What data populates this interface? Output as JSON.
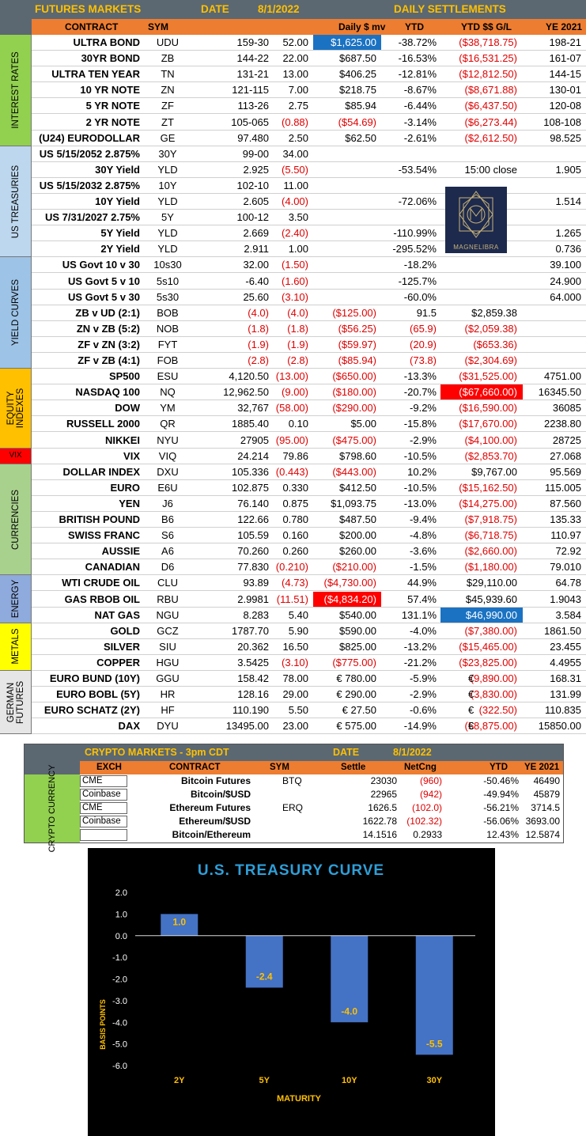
{
  "futures": {
    "title": "FUTURES MARKETS",
    "date_label": "DATE",
    "date": "8/1/2022",
    "settlements_title": "DAILY SETTLEMENTS",
    "headers": {
      "contract": "CONTRACT",
      "sym": "SYM",
      "daily_mv": "Daily $ mv",
      "ytd": "YTD",
      "ytd_gl": "YTD $$ G/L",
      "ye": "YE 2021"
    },
    "sections": [
      {
        "label": "INTEREST RATES",
        "color": "#92d050"
      },
      {
        "label": "US TREASURIES",
        "color": "#bdd7ee"
      },
      {
        "label": "YIELD CURVES",
        "color": "#9dc3e6"
      },
      {
        "label": "EQUITY INDEXES",
        "color": "#ffc000"
      },
      {
        "label": "VIX",
        "color": "#ff0000"
      },
      {
        "label": "CURRENCIES",
        "color": "#a9d18e"
      },
      {
        "label": "ENERGY",
        "color": "#8faadc"
      },
      {
        "label": "METALS",
        "color": "#ffff00"
      },
      {
        "label": "GERMAN FUTURES",
        "color": "#e7e6e6"
      }
    ],
    "rows": [
      {
        "name": "ULTRA BOND",
        "sym": "UDU",
        "last": "159-30",
        "chg": "52.00",
        "mv": "$1,625.00",
        "ytd": "-38.72%",
        "gl": "($38,718.75)",
        "ye": "198-21"
      },
      {
        "name": "30YR BOND",
        "sym": "ZB",
        "last": "144-22",
        "chg": "22.00",
        "mv": "$687.50",
        "ytd": "-16.53%",
        "gl": "($16,531.25)",
        "ye": "161-07"
      },
      {
        "name": "ULTRA TEN YEAR",
        "sym": "TN",
        "last": "131-21",
        "chg": "13.00",
        "mv": "$406.25",
        "ytd": "-12.81%",
        "gl": "($12,812.50)",
        "ye": "144-15"
      },
      {
        "name": "10 YR NOTE",
        "sym": "ZN",
        "last": "121-115",
        "chg": "7.00",
        "mv": "$218.75",
        "ytd": "-8.67%",
        "gl": "($8,671.88)",
        "ye": "130-01"
      },
      {
        "name": "5 YR NOTE",
        "sym": "ZF",
        "last": "113-26",
        "chg": "2.75",
        "mv": "$85.94",
        "ytd": "-6.44%",
        "gl": "($6,437.50)",
        "ye": "120-08"
      },
      {
        "name": "2 YR NOTE",
        "sym": "ZT",
        "last": "105-065",
        "chg": "(0.88)",
        "mv": "($54.69)",
        "ytd": "-3.14%",
        "gl": "($6,273.44)",
        "ye": "108-108"
      },
      {
        "name": "(U24) EURODOLLAR",
        "sym": "GE",
        "last": "97.480",
        "chg": "2.50",
        "mv": "$62.50",
        "ytd": "-2.61%",
        "gl": "($2,612.50)",
        "ye": "98.525"
      },
      {
        "name": "US 5/15/2052 2.875%",
        "sym": "30Y",
        "last": "99-00",
        "chg": "34.00",
        "mv": "",
        "ytd": "",
        "gl": "",
        "ye": ""
      },
      {
        "name": "30Y Yield",
        "sym": "YLD",
        "last": "2.925",
        "chg": "(5.50)",
        "mv": "",
        "ytd": "-53.54%",
        "gl": "15:00 close",
        "ye": "1.905"
      },
      {
        "name": "US 5/15/2032 2.875%",
        "sym": "10Y",
        "last": "102-10",
        "chg": "11.00",
        "mv": "",
        "ytd": "",
        "gl": "",
        "ye": ""
      },
      {
        "name": "10Y Yield",
        "sym": "YLD",
        "last": "2.605",
        "chg": "(4.00)",
        "mv": "",
        "ytd": "-72.06%",
        "gl": "",
        "ye": "1.514"
      },
      {
        "name": "US 7/31/2027 2.75%",
        "sym": "5Y",
        "last": "100-12",
        "chg": "3.50",
        "mv": "",
        "ytd": "",
        "gl": "",
        "ye": ""
      },
      {
        "name": "5Y Yield",
        "sym": "YLD",
        "last": "2.669",
        "chg": "(2.40)",
        "mv": "",
        "ytd": "-110.99%",
        "gl": "",
        "ye": "1.265"
      },
      {
        "name": "2Y Yield",
        "sym": "YLD",
        "last": "2.911",
        "chg": "1.00",
        "mv": "",
        "ytd": "-295.52%",
        "gl": "",
        "ye": "0.736"
      },
      {
        "name": "US Govt 10 v 30",
        "sym": "10s30",
        "last": "32.00",
        "chg": "(1.50)",
        "mv": "",
        "ytd": "-18.2%",
        "gl": "",
        "ye": "39.100"
      },
      {
        "name": "US Govt 5 v 10",
        "sym": "5s10",
        "last": "-6.40",
        "chg": "(1.60)",
        "mv": "",
        "ytd": "-125.7%",
        "gl": "",
        "ye": "24.900"
      },
      {
        "name": "US Govt 5 v 30",
        "sym": "5s30",
        "last": "25.60",
        "chg": "(3.10)",
        "mv": "",
        "ytd": "-60.0%",
        "gl": "",
        "ye": "64.000"
      },
      {
        "name": "ZB v UD (2:1)",
        "sym": "BOB",
        "last": "(4.0)",
        "chg": "(4.0)",
        "mv": "($125.00)",
        "ytd": "91.5",
        "gl": "$2,859.38",
        "ye": ""
      },
      {
        "name": "ZN v ZB (5:2)",
        "sym": "NOB",
        "last": "(1.8)",
        "chg": "(1.8)",
        "mv": "($56.25)",
        "ytd": "(65.9)",
        "gl": "($2,059.38)",
        "ye": ""
      },
      {
        "name": "ZF v ZN (3:2)",
        "sym": "FYT",
        "last": "(1.9)",
        "chg": "(1.9)",
        "mv": "($59.97)",
        "ytd": "(20.9)",
        "gl": "($653.36)",
        "ye": ""
      },
      {
        "name": "ZF v ZB (4:1)",
        "sym": "FOB",
        "last": "(2.8)",
        "chg": "(2.8)",
        "mv": "($85.94)",
        "ytd": "(73.8)",
        "gl": "($2,304.69)",
        "ye": ""
      },
      {
        "name": "SP500",
        "sym": "ESU",
        "last": "4,120.50",
        "chg": "(13.00)",
        "mv": "($650.00)",
        "ytd": "-13.3%",
        "gl": "($31,525.00)",
        "ye": "4751.00"
      },
      {
        "name": "NASDAQ 100",
        "sym": "NQ",
        "last": "12,962.50",
        "chg": "(9.00)",
        "mv": "($180.00)",
        "ytd": "-20.7%",
        "gl": "($67,660.00)",
        "ye": "16345.50"
      },
      {
        "name": "DOW",
        "sym": "YM",
        "last": "32,767",
        "chg": "(58.00)",
        "mv": "($290.00)",
        "ytd": "-9.2%",
        "gl": "($16,590.00)",
        "ye": "36085"
      },
      {
        "name": "RUSSELL 2000",
        "sym": "QR",
        "last": "1885.40",
        "chg": "0.10",
        "mv": "$5.00",
        "ytd": "-15.8%",
        "gl": "($17,670.00)",
        "ye": "2238.80"
      },
      {
        "name": "NIKKEI",
        "sym": "NYU",
        "last": "27905",
        "chg": "(95.00)",
        "mv": "($475.00)",
        "ytd": "-2.9%",
        "gl": "($4,100.00)",
        "ye": "28725"
      },
      {
        "name": "VIX",
        "sym": "VIQ",
        "last": "24.214",
        "chg": "79.86",
        "mv": "$798.60",
        "ytd": "-10.5%",
        "gl": "($2,853.70)",
        "ye": "27.068"
      },
      {
        "name": "DOLLAR INDEX",
        "sym": "DXU",
        "last": "105.336",
        "chg": "(0.443)",
        "mv": "($443.00)",
        "ytd": "10.2%",
        "gl": "$9,767.00",
        "ye": "95.569"
      },
      {
        "name": "EURO",
        "sym": "E6U",
        "last": "102.875",
        "chg": "0.330",
        "mv": "$412.50",
        "ytd": "-10.5%",
        "gl": "($15,162.50)",
        "ye": "115.005"
      },
      {
        "name": "YEN",
        "sym": "J6",
        "last": "76.140",
        "chg": "0.875",
        "mv": "$1,093.75",
        "ytd": "-13.0%",
        "gl": "($14,275.00)",
        "ye": "87.560"
      },
      {
        "name": "BRITISH POUND",
        "sym": "B6",
        "last": "122.66",
        "chg": "0.780",
        "mv": "$487.50",
        "ytd": "-9.4%",
        "gl": "($7,918.75)",
        "ye": "135.33"
      },
      {
        "name": "SWISS FRANC",
        "sym": "S6",
        "last": "105.59",
        "chg": "0.160",
        "mv": "$200.00",
        "ytd": "-4.8%",
        "gl": "($6,718.75)",
        "ye": "110.97"
      },
      {
        "name": "AUSSIE",
        "sym": "A6",
        "last": "70.260",
        "chg": "0.260",
        "mv": "$260.00",
        "ytd": "-3.6%",
        "gl": "($2,660.00)",
        "ye": "72.92"
      },
      {
        "name": "CANADIAN",
        "sym": "D6",
        "last": "77.830",
        "chg": "(0.210)",
        "mv": "($210.00)",
        "ytd": "-1.5%",
        "gl": "($1,180.00)",
        "ye": "79.010"
      },
      {
        "name": "WTI CRUDE OIL",
        "sym": "CLU",
        "last": "93.89",
        "chg": "(4.73)",
        "mv": "($4,730.00)",
        "ytd": "44.9%",
        "gl": "$29,110.00",
        "ye": "64.78"
      },
      {
        "name": "GAS RBOB OIL",
        "sym": "RBU",
        "last": "2.9981",
        "chg": "(11.51)",
        "mv": "($4,834.20)",
        "ytd": "57.4%",
        "gl": "$45,939.60",
        "ye": "1.9043"
      },
      {
        "name": "NAT GAS",
        "sym": "NGU",
        "last": "8.283",
        "chg": "5.40",
        "mv": "$540.00",
        "ytd": "131.1%",
        "gl": "$46,990.00",
        "ye": "3.584"
      },
      {
        "name": "GOLD",
        "sym": "GCZ",
        "last": "1787.70",
        "chg": "5.90",
        "mv": "$590.00",
        "ytd": "-4.0%",
        "gl": "($7,380.00)",
        "ye": "1861.50"
      },
      {
        "name": "SILVER",
        "sym": "SIU",
        "last": "20.362",
        "chg": "16.50",
        "mv": "$825.00",
        "ytd": "-13.2%",
        "gl": "($15,465.00)",
        "ye": "23.455"
      },
      {
        "name": "COPPER",
        "sym": "HGU",
        "last": "3.5425",
        "chg": "(3.10)",
        "mv": "($775.00)",
        "ytd": "-21.2%",
        "gl": "($23,825.00)",
        "ye": "4.4955"
      },
      {
        "name": "EURO BUND (10Y)",
        "sym": "GGU",
        "last": "158.42",
        "chg": "78.00",
        "mv": "€ 780.00",
        "ytd": "-5.9%",
        "gl_eur": "€",
        "gl": "(9,890.00)",
        "ye": "168.31"
      },
      {
        "name": "EURO BOBL (5Y)",
        "sym": "HR",
        "last": "128.16",
        "chg": "29.00",
        "mv": "€ 290.00",
        "ytd": "-2.9%",
        "gl_eur": "€",
        "gl": "(3,830.00)",
        "ye": "131.99"
      },
      {
        "name": "EURO SCHATZ (2Y)",
        "sym": "HF",
        "last": "110.190",
        "chg": "5.50",
        "mv": "€ 27.50",
        "ytd": "-0.6%",
        "gl_eur": "€",
        "gl": "(322.50)",
        "ye": "110.835"
      },
      {
        "name": "DAX",
        "sym": "DYU",
        "last": "13495.00",
        "chg": "23.00",
        "mv": "€ 575.00",
        "ytd": "-14.9%",
        "gl_eur": "€",
        "gl": "(58,875.00)",
        "ye": "15850.00"
      }
    ],
    "logo_text": "MAGNELIBRA"
  },
  "crypto": {
    "title": "CRYPTO MARKETS - 3pm CDT",
    "date_label": "DATE",
    "date": "8/1/2022",
    "section_label": "CRYPTO CURRENCY",
    "headers": {
      "exch": "EXCH",
      "contract": "CONTRACT",
      "sym": "SYM",
      "settle": "Settle",
      "netchg": "NetCng",
      "ytd": "YTD",
      "ye": "YE 2021"
    },
    "rows": [
      {
        "exch": "CME",
        "contract": "Bitcoin Futures",
        "sym": "BTQ",
        "settle": "23030",
        "netchg": "(960)",
        "ytd": "-50.46%",
        "ye": "46490"
      },
      {
        "exch": "Coinbase",
        "contract": "Bitcoin/$USD",
        "sym": "",
        "settle": "22965",
        "netchg": "(942)",
        "ytd": "-49.94%",
        "ye": "45879"
      },
      {
        "exch": "CME",
        "contract": "Ethereum Futures",
        "sym": "ERQ",
        "settle": "1626.5",
        "netchg": "(102.0)",
        "ytd": "-56.21%",
        "ye": "3714.5"
      },
      {
        "exch": "Coinbase",
        "contract": "Ethereum/$USD",
        "sym": "",
        "settle": "1622.78",
        "netchg": "(102.32)",
        "ytd": "-56.06%",
        "ye": "3693.00"
      },
      {
        "exch": "",
        "contract": "Bitcoin/Ethereum",
        "sym": "",
        "settle": "14.1516",
        "netchg": "0.2933",
        "ytd": "12.43%",
        "ye": "12.5874"
      }
    ]
  },
  "chart_data": {
    "type": "bar",
    "title": "U.S. TREASURY CURVE",
    "xlabel": "MATURITY",
    "ylabel": "BASIS POINTS",
    "categories": [
      "2Y",
      "5Y",
      "10Y",
      "30Y"
    ],
    "values": [
      1.0,
      -2.4,
      -4.0,
      -5.5
    ],
    "data_labels": [
      "1.0",
      "-2.4",
      "-4.0",
      "-5.5"
    ],
    "yticks": [
      "2.0",
      "1.0",
      "0.0",
      "-1.0",
      "-2.0",
      "-3.0",
      "-4.0",
      "-5.0",
      "-6.0"
    ],
    "ylim": [
      -6,
      2
    ],
    "bar_color": "#4472c4",
    "label_color": "#ffc000",
    "title_color": "#2e9fd8",
    "background": "#000000"
  }
}
